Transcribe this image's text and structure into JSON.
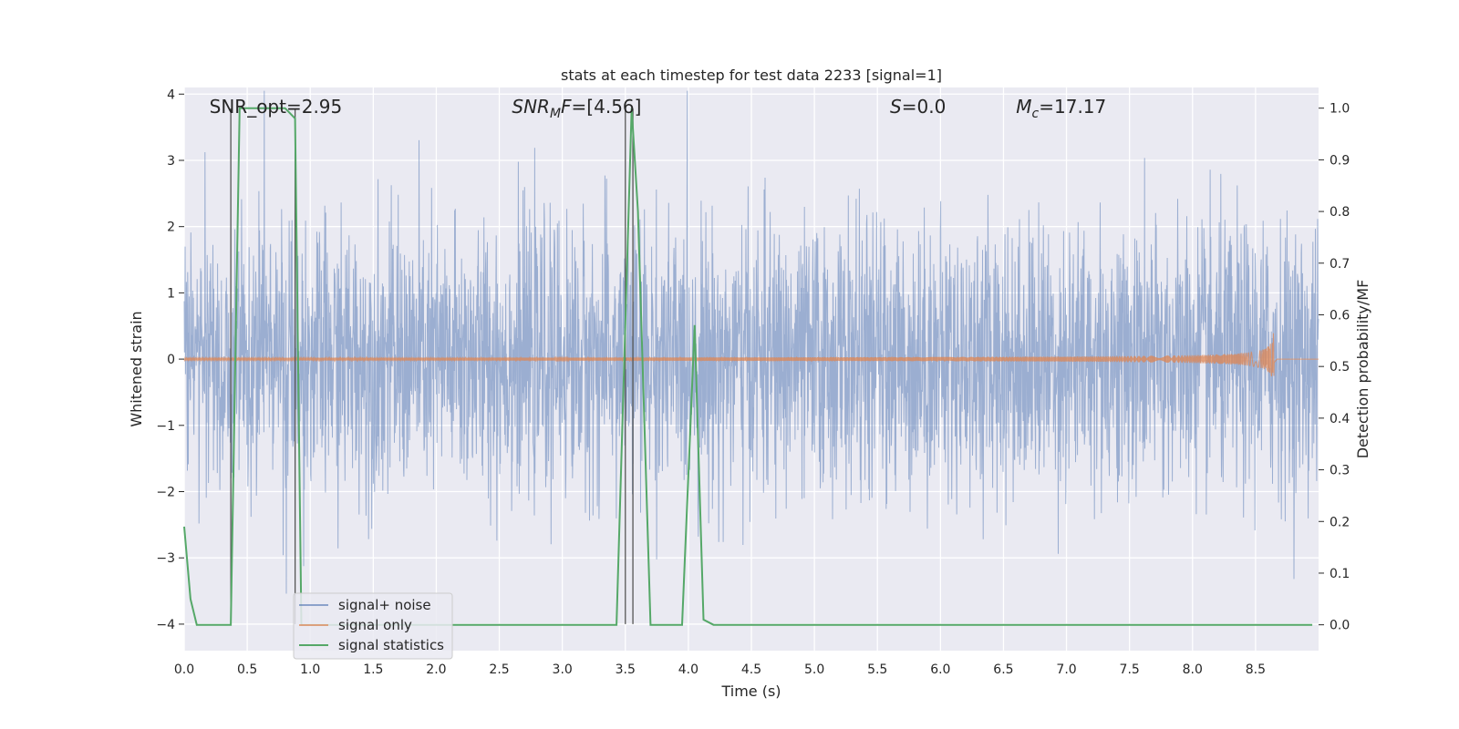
{
  "chart_data": {
    "type": "line",
    "title": "stats at each timestep for test data 2233 [signal=1]",
    "xlabel": "Time (s)",
    "ylabel": "Whitened strain",
    "y2label": "Detection probability/MF",
    "xlim": [
      0,
      9
    ],
    "ylim": [
      -4.4,
      4.1
    ],
    "y2lim": [
      -0.05,
      1.04
    ],
    "xticks": [
      0.0,
      0.5,
      1.0,
      1.5,
      2.0,
      2.5,
      3.0,
      3.5,
      4.0,
      4.5,
      5.0,
      5.5,
      6.0,
      6.5,
      7.0,
      7.5,
      8.0,
      8.5
    ],
    "xtick_labels": [
      "0.0",
      "0.5",
      "1.0",
      "1.5",
      "2.0",
      "2.5",
      "3.0",
      "3.5",
      "4.0",
      "4.5",
      "5.0",
      "5.5",
      "6.0",
      "6.5",
      "7.0",
      "7.5",
      "8.0",
      "8.5"
    ],
    "yticks": [
      4,
      3,
      2,
      1,
      0,
      -1,
      -2,
      -3,
      -4
    ],
    "ytick_labels": [
      "4",
      "3",
      "2",
      "1",
      "0",
      "−1",
      "−2",
      "−3",
      "−4"
    ],
    "y2ticks": [
      1.0,
      0.9,
      0.8,
      0.7,
      0.6,
      0.5,
      0.4,
      0.3,
      0.2,
      0.1,
      0.0
    ],
    "y2tick_labels": [
      "1.0",
      "0.9",
      "0.8",
      "0.7",
      "0.6",
      "0.5",
      "0.4",
      "0.3",
      "0.2",
      "0.1",
      "0.0"
    ],
    "grid": true,
    "legend_placement": "lower-left",
    "annotations": [
      {
        "text": "SNR_opt=2.95",
        "x": 0.2
      },
      {
        "text": "SNR_MF=[4.56]",
        "x": 2.6
      },
      {
        "text": "S=0.0",
        "x": 5.6
      },
      {
        "text": "M_c=17.17",
        "x": 6.6
      }
    ],
    "vlines_x": [
      0.37,
      0.88,
      3.5,
      3.56
    ],
    "series": [
      {
        "name": "signal+ noise",
        "color": "#4c72b0",
        "kind": "noise",
        "amplitude_std": 1.0,
        "x_range": [
          0,
          9
        ]
      },
      {
        "name": "signal only",
        "color": "#dd8452",
        "kind": "chirp",
        "end_time": 8.65,
        "peak_amplitude": 0.6
      },
      {
        "name": "signal statistics",
        "color": "#55a868",
        "kind": "probability",
        "x": [
          0.0,
          0.05,
          0.1,
          0.2,
          0.3,
          0.37,
          0.44,
          0.5,
          0.8,
          0.88,
          0.93,
          1.0,
          3.3,
          3.43,
          3.55,
          3.6,
          3.7,
          3.95,
          4.05,
          4.12,
          4.2,
          4.4,
          8.5,
          8.95
        ],
        "y": [
          0.19,
          0.05,
          0.0,
          0.0,
          0.0,
          0.0,
          1.0,
          1.0,
          1.0,
          0.98,
          0.0,
          0.0,
          0.0,
          0.0,
          1.0,
          0.8,
          0.0,
          0.0,
          0.58,
          0.01,
          0.0,
          0.0,
          0.0,
          0.0
        ]
      }
    ]
  }
}
